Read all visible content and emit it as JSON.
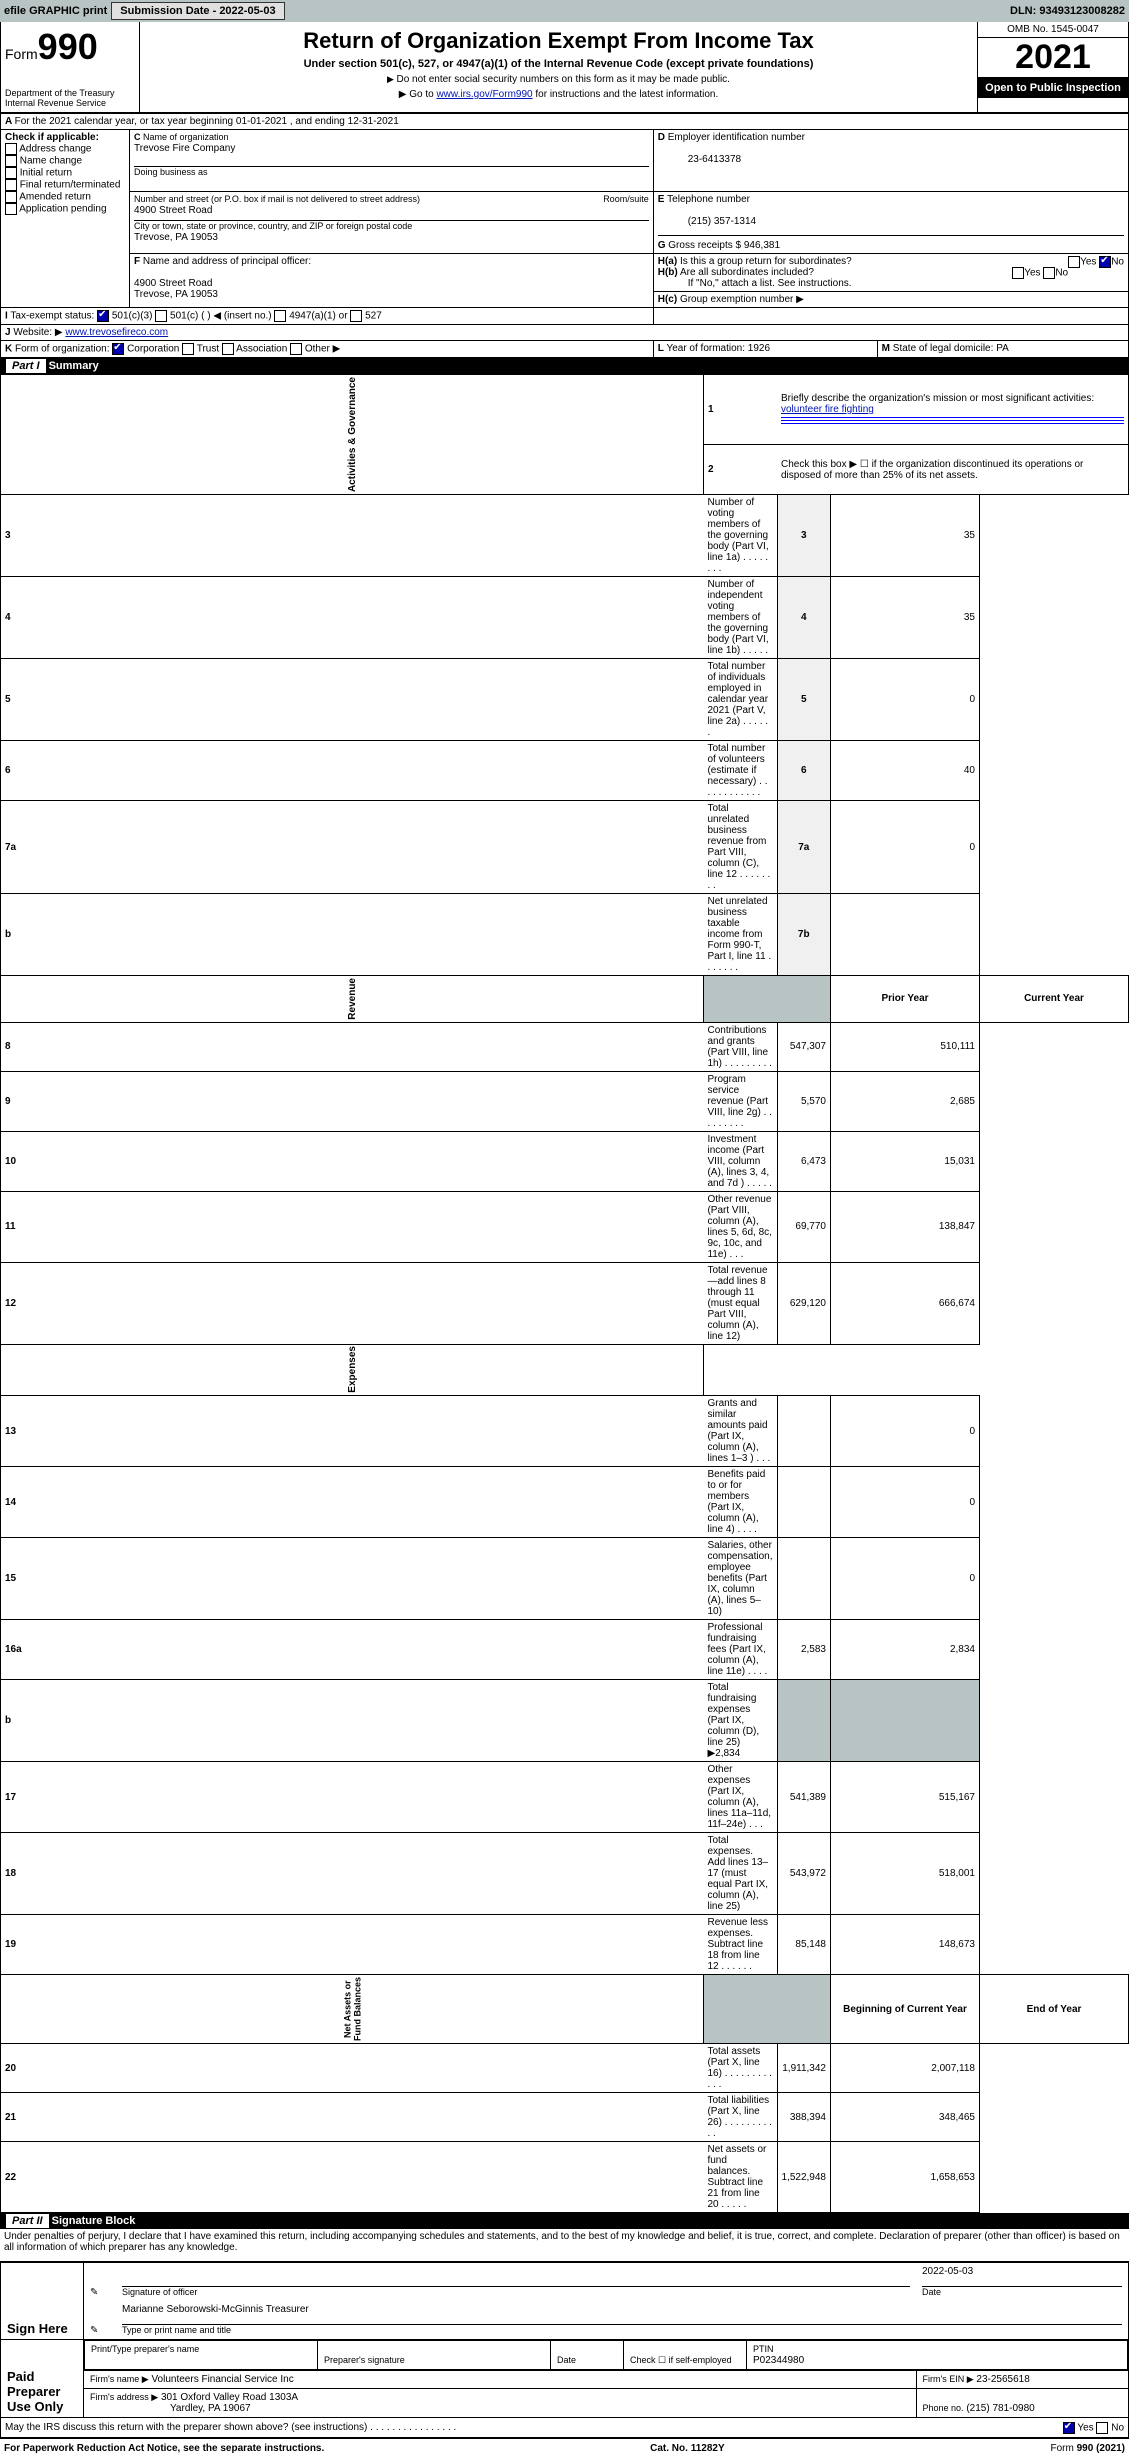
{
  "topbar": {
    "efile": "efile GRAPHIC print",
    "submission": "Submission Date - 2022-05-03",
    "dln": "DLN: 93493123008282"
  },
  "header": {
    "form_label": "Form",
    "form_no": "990",
    "dept": "Department of the Treasury",
    "irs": "Internal Revenue Service",
    "title": "Return of Organization Exempt From Income Tax",
    "subtitle": "Under section 501(c), 527, or 4947(a)(1) of the Internal Revenue Code (except private foundations)",
    "instr1": "Do not enter social security numbers on this form as it may be made public.",
    "instr2_pre": "Go to ",
    "instr2_link": "www.irs.gov/Form990",
    "instr2_post": " for instructions and the latest information.",
    "omb": "OMB No. 1545-0047",
    "year": "2021",
    "open": "Open to Public Inspection"
  },
  "A": {
    "text": "For the 2021 calendar year, or tax year beginning 01-01-2021    , and ending 12-31-2021"
  },
  "B": {
    "label": "Check if applicable:",
    "items": [
      "Address change",
      "Name change",
      "Initial return",
      "Final return/terminated",
      "Amended return",
      "Application pending"
    ]
  },
  "C": {
    "name_lbl": "Name of organization",
    "name": "Trevose Fire Company",
    "dba_lbl": "Doing business as",
    "dba": "",
    "street_lbl": "Number and street (or P.O. box if mail is not delivered to street address)",
    "room_lbl": "Room/suite",
    "street": "4900 Street Road",
    "city_lbl": "City or town, state or province, country, and ZIP or foreign postal code",
    "city": "Trevose, PA  19053"
  },
  "D": {
    "lbl": "Employer identification number",
    "val": "23-6413378"
  },
  "E": {
    "lbl": "Telephone number",
    "val": "(215) 357-1314"
  },
  "G": {
    "lbl": "Gross receipts $",
    "val": "946,381"
  },
  "F": {
    "lbl": "Name and address of principal officer:",
    "line1": "4900 Street Road",
    "line2": "Trevose, PA  19053"
  },
  "H": {
    "a": "Is this a group return for subordinates?",
    "b": "Are all subordinates included?",
    "note": "If \"No,\" attach a list. See instructions.",
    "c": "Group exemption number ▶"
  },
  "I": {
    "lbl": "Tax-exempt status:",
    "c3": "501(c)(3)",
    "c": "501(c) (  ) ◀ (insert no.)",
    "a1": "4947(a)(1) or",
    "s527": "527"
  },
  "J": {
    "lbl": "Website: ▶",
    "val": "www.trevosefireco.com"
  },
  "K": {
    "lbl": "Form of organization:",
    "corp": "Corporation",
    "trust": "Trust",
    "assoc": "Association",
    "other": "Other ▶"
  },
  "L": {
    "lbl": "Year of formation:",
    "val": "1926"
  },
  "M": {
    "lbl": "State of legal domicile:",
    "val": "PA"
  },
  "part1": {
    "hdr": "Part I",
    "title": "Summary",
    "q1": "Briefly describe the organization's mission or most significant activities:",
    "a1": "volunteer fire fighting",
    "q2": "Check this box ▶ ☐  if the organization discontinued its operations or disposed of more than 25% of its net assets.",
    "rows": [
      {
        "n": "3",
        "t": "Number of voting members of the governing body (Part VI, line 1a)   .    .    .    .    .    .    .    .",
        "box": "3",
        "v": "35"
      },
      {
        "n": "4",
        "t": "Number of independent voting members of the governing body (Part VI, line 1b)   .    .    .    .    .",
        "box": "4",
        "v": "35"
      },
      {
        "n": "5",
        "t": "Total number of individuals employed in calendar year 2021 (Part V, line 2a)   .    .    .    .    .    .",
        "box": "5",
        "v": "0"
      },
      {
        "n": "6",
        "t": "Total number of volunteers (estimate if necessary)   .    .    .    .    .    .    .    .    .    .    .    .",
        "box": "6",
        "v": "40"
      },
      {
        "n": "7a",
        "t": "Total unrelated business revenue from Part VIII, column (C), line 12   .    .    .    .    .    .    .    .",
        "box": "7a",
        "v": "0"
      },
      {
        "n": "b",
        "t": "Net unrelated business taxable income from Form 990-T, Part I, line 11   .    .    .    .    .    .    .",
        "box": "7b",
        "v": ""
      }
    ],
    "col_prior": "Prior Year",
    "col_curr": "Current Year",
    "rev": [
      {
        "n": "8",
        "t": "Contributions and grants (Part VIII, line 1h)   .    .    .    .    .    .    .    .    .",
        "p": "547,307",
        "c": "510,111"
      },
      {
        "n": "9",
        "t": "Program service revenue (Part VIII, line 2g)   .    .    .    .    .    .    .    .    .",
        "p": "5,570",
        "c": "2,685"
      },
      {
        "n": "10",
        "t": "Investment income (Part VIII, column (A), lines 3, 4, and 7d )   .    .    .    .    .",
        "p": "6,473",
        "c": "15,031"
      },
      {
        "n": "11",
        "t": "Other revenue (Part VIII, column (A), lines 5, 6d, 8c, 9c, 10c, and 11e)   .    .    .",
        "p": "69,770",
        "c": "138,847"
      },
      {
        "n": "12",
        "t": "Total revenue—add lines 8 through 11 (must equal Part VIII, column (A), line 12)",
        "p": "629,120",
        "c": "666,674"
      }
    ],
    "exp": [
      {
        "n": "13",
        "t": "Grants and similar amounts paid (Part IX, column (A), lines 1–3 )   .    .    .",
        "p": "",
        "c": "0"
      },
      {
        "n": "14",
        "t": "Benefits paid to or for members (Part IX, column (A), line 4)   .    .    .    .",
        "p": "",
        "c": "0"
      },
      {
        "n": "15",
        "t": "Salaries, other compensation, employee benefits (Part IX, column (A), lines 5–10)",
        "p": "",
        "c": "0"
      },
      {
        "n": "16a",
        "t": "Professional fundraising fees (Part IX, column (A), line 11e)   .    .    .    .",
        "p": "2,583",
        "c": "2,834"
      },
      {
        "n": "b",
        "t": "Total fundraising expenses (Part IX, column (D), line 25) ▶2,834",
        "p": "shade",
        "c": "shade"
      },
      {
        "n": "17",
        "t": "Other expenses (Part IX, column (A), lines 11a–11d, 11f–24e)   .    .    .",
        "p": "541,389",
        "c": "515,167"
      },
      {
        "n": "18",
        "t": "Total expenses. Add lines 13–17 (must equal Part IX, column (A), line 25)",
        "p": "543,972",
        "c": "518,001"
      },
      {
        "n": "19",
        "t": "Revenue less expenses. Subtract line 18 from line 12   .    .    .    .    .    .",
        "p": "85,148",
        "c": "148,673"
      }
    ],
    "col_beg": "Beginning of Current Year",
    "col_end": "End of Year",
    "net": [
      {
        "n": "20",
        "t": "Total assets (Part X, line 16)   .    .    .    .    .    .    .    .    .    .    .    .",
        "p": "1,911,342",
        "c": "2,007,118"
      },
      {
        "n": "21",
        "t": "Total liabilities (Part X, line 26)   .    .    .    .    .    .    .    .    .    .    .",
        "p": "388,394",
        "c": "348,465"
      },
      {
        "n": "22",
        "t": "Net assets or fund balances. Subtract line 21 from line 20   .    .    .    .    .",
        "p": "1,522,948",
        "c": "1,658,653"
      }
    ]
  },
  "part2": {
    "hdr": "Part II",
    "title": "Signature Block",
    "decl": "Under penalties of perjury, I declare that I have examined this return, including accompanying schedules and statements, and to the best of my knowledge and belief, it is true, correct, and complete. Declaration of preparer (other than officer) is based on all information of which preparer has any knowledge.",
    "sign_here": "Sign Here",
    "sig_officer": "Signature of officer",
    "date": "2022-05-03",
    "date_lbl": "Date",
    "name": "Marianne Seborowski-McGinnis Treasurer",
    "name_lbl": "Type or print name and title",
    "paid": "Paid Preparer Use Only",
    "col_prep": "Print/Type preparer's name",
    "col_sig": "Preparer's signature",
    "col_date": "Date",
    "check_self": "Check ☐ if self-employed",
    "ptin_lbl": "PTIN",
    "ptin": "P02344980",
    "firm_name_lbl": "Firm's name    ▶",
    "firm_name": "Volunteers Financial Service Inc",
    "firm_ein_lbl": "Firm's EIN ▶",
    "firm_ein": "23-2565618",
    "firm_addr_lbl": "Firm's address ▶",
    "firm_addr1": "301 Oxford Valley Road 1303A",
    "firm_addr2": "Yardley, PA  19067",
    "phone_lbl": "Phone no.",
    "phone": "(215) 781-0980",
    "may": "May the IRS discuss this return with the preparer shown above? (see instructions)   .    .    .    .    .    .    .    .    .    .    .    .    .    .    .    ."
  },
  "footer": {
    "l": "For Paperwork Reduction Act Notice, see the separate instructions.",
    "m": "Cat. No. 11282Y",
    "r": "Form 990 (2021)"
  }
}
